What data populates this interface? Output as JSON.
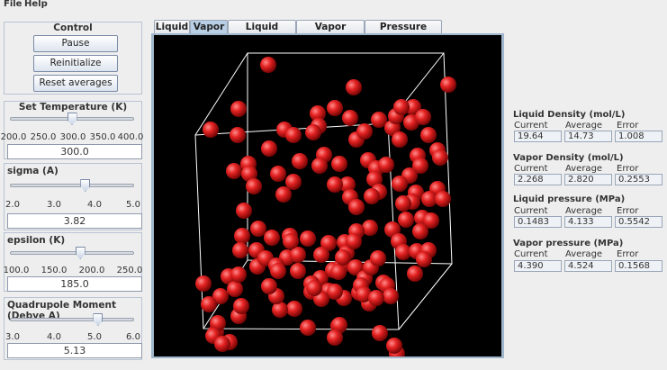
{
  "menu": {
    "file": "File",
    "help": "Help"
  },
  "control": {
    "title": "Control",
    "pause_label": "Pause",
    "reinitialize_label": "Reinitialize",
    "reset_label": "Reset averages"
  },
  "sliders": [
    {
      "title": "Set Temperature (K)",
      "ticks": [
        "200.0",
        "250.0",
        "300.0",
        "350.0",
        "400.0"
      ],
      "value": "300.0",
      "level": 0.5
    },
    {
      "title": "sigma (A)",
      "ticks": [
        "2.0",
        "3.0",
        "4.0",
        "5.0"
      ],
      "value": "3.82",
      "level": 0.607
    },
    {
      "title": "epsilon (K)",
      "ticks": [
        "100.0",
        "150.0",
        "200.0",
        "250.0"
      ],
      "value": "185.0",
      "level": 0.567
    },
    {
      "title": "Quadrupole Moment (Debye A)",
      "ticks": [
        "3.0",
        "4.0",
        "5.0",
        "6.0"
      ],
      "value": "5.13",
      "level": 0.71
    }
  ],
  "tabs": [
    {
      "label": "Liquid",
      "active": false
    },
    {
      "label": "Vapor",
      "active": true
    },
    {
      "label": "Liquid Density",
      "active": false
    },
    {
      "label": "Vapor Density",
      "active": false
    },
    {
      "label": "Pressure History",
      "active": false
    }
  ],
  "stats": {
    "headers": {
      "current": "Current",
      "average": "Average",
      "error": "Error"
    },
    "groups": [
      {
        "title": "Liquid Density (mol/L)",
        "current": "19.64",
        "average": "14.73",
        "error": "1.008"
      },
      {
        "title": "Vapor Density (mol/L)",
        "current": "2.268",
        "average": "2.820",
        "error": "0.2553"
      },
      {
        "title": "Liquid pressure (MPa)",
        "current": "0.1483",
        "average": "4.133",
        "error": "0.5542"
      },
      {
        "title": "Vapor pressure (MPa)",
        "current": "4.390",
        "average": "4.524",
        "error": "0.1568"
      }
    ]
  },
  "colors": {
    "molecule": "#e02020",
    "box_edges": "#ffffff",
    "background": "#000000"
  }
}
